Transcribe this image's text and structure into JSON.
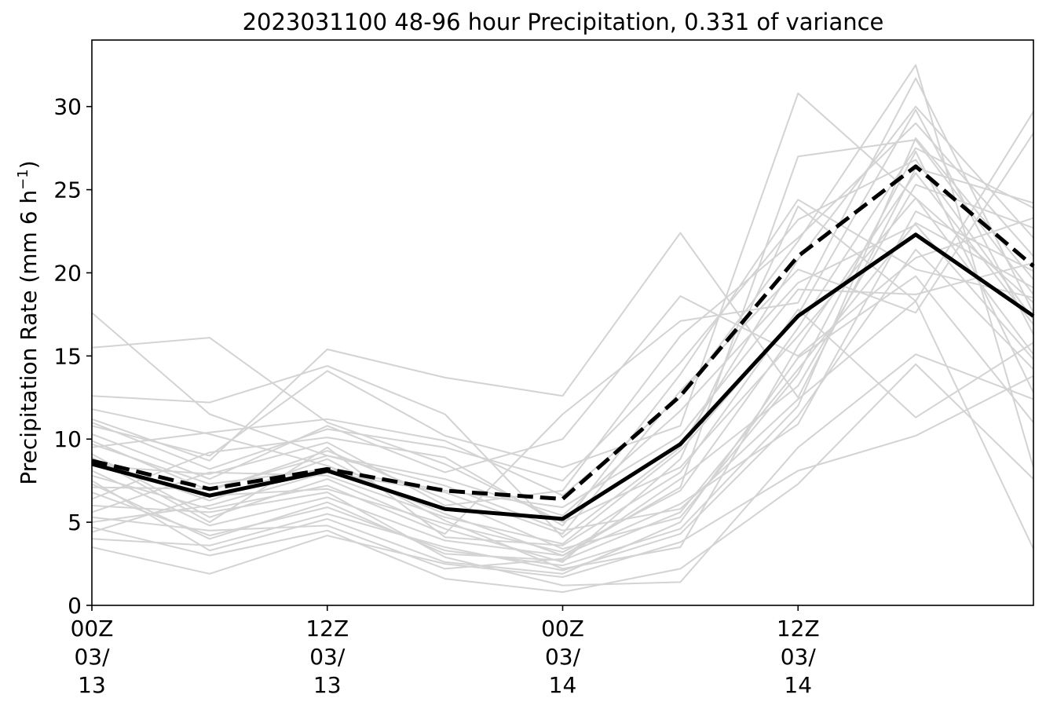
{
  "chart_data": {
    "type": "line",
    "title": "2023031100 48-96 hour Precipitation, 0.331 of variance",
    "ylabel_main": "Precipitation Rate (mm 6 h",
    "ylabel_sup": "−1",
    "ylabel_end": ")",
    "xlabel": "",
    "x": [
      0,
      6,
      12,
      18,
      24,
      30,
      36,
      42,
      48
    ],
    "xlim": [
      0,
      48
    ],
    "ylim": [
      0,
      34
    ],
    "yticks": [
      0,
      5,
      10,
      15,
      20,
      25,
      30
    ],
    "xticks": [
      {
        "x": 0,
        "lines": [
          "00Z",
          "03/",
          "13"
        ]
      },
      {
        "x": 12,
        "lines": [
          "12Z",
          "03/",
          "13"
        ]
      },
      {
        "x": 24,
        "lines": [
          "00Z",
          "03/",
          "14"
        ]
      },
      {
        "x": 36,
        "lines": [
          "12Z",
          "03/",
          "14"
        ]
      }
    ],
    "grid": false,
    "colors": {
      "ensemble": "#d3d3d3",
      "solid": "#000000",
      "dashed": "#000000"
    },
    "ensemble": [
      [
        17.6,
        11.5,
        9.0,
        7.2,
        4.5,
        5.8,
        12.4,
        18.3,
        3.4
      ],
      [
        15.5,
        16.1,
        11.0,
        8.5,
        5.0,
        8.3,
        16.2,
        24.5,
        18.2
      ],
      [
        12.6,
        12.2,
        14.4,
        11.5,
        4.1,
        9.5,
        20.8,
        30.0,
        22.1
      ],
      [
        11.8,
        10.3,
        8.4,
        5.5,
        3.0,
        7.1,
        27.0,
        28.0,
        18.7
      ],
      [
        11.2,
        8.7,
        15.4,
        13.7,
        12.6,
        22.4,
        12.5,
        26.3,
        24.2
      ],
      [
        10.8,
        9.0,
        14.1,
        10.2,
        8.3,
        10.8,
        30.8,
        24.5,
        15.1
      ],
      [
        10.3,
        7.6,
        10.8,
        8.0,
        10.0,
        18.6,
        15.0,
        20.9,
        23.3
      ],
      [
        9.9,
        6.9,
        9.3,
        6.4,
        3.4,
        5.3,
        13.9,
        27.3,
        12.8
      ],
      [
        9.5,
        10.4,
        11.2,
        9.9,
        6.6,
        12.5,
        21.9,
        32.5,
        8.3
      ],
      [
        9.1,
        5.3,
        7.6,
        4.6,
        2.6,
        8.8,
        24.0,
        18.3,
        29.7
      ],
      [
        8.8,
        6.3,
        8.8,
        5.1,
        2.2,
        3.5,
        15.6,
        26.0,
        16.9
      ],
      [
        8.4,
        7.9,
        9.8,
        6.0,
        6.9,
        16.2,
        22.1,
        29.0,
        21.0
      ],
      [
        8.1,
        4.8,
        6.5,
        3.9,
        3.0,
        6.1,
        10.9,
        23.7,
        20.1
      ],
      [
        7.8,
        5.8,
        7.2,
        4.3,
        11.5,
        17.1,
        18.2,
        31.7,
        17.6
      ],
      [
        7.5,
        3.3,
        5.2,
        2.6,
        1.9,
        5.0,
        14.9,
        19.8,
        11.0
      ],
      [
        7.1,
        7.0,
        9.0,
        7.6,
        5.4,
        11.7,
        19.4,
        22.9,
        14.8
      ],
      [
        6.8,
        4.2,
        5.9,
        3.3,
        2.4,
        4.6,
        12.0,
        28.1,
        19.6
      ],
      [
        6.4,
        9.2,
        10.1,
        8.9,
        4.8,
        13.9,
        24.4,
        20.2,
        18.5
      ],
      [
        6.0,
        5.6,
        6.8,
        2.9,
        1.2,
        1.4,
        9.5,
        15.1,
        12.4
      ],
      [
        5.6,
        8.0,
        7.8,
        5.3,
        3.7,
        9.3,
        17.5,
        29.8,
        16.3
      ],
      [
        5.3,
        4.5,
        4.8,
        2.2,
        2.8,
        7.6,
        13.2,
        25.3,
        22.7
      ],
      [
        5.0,
        6.0,
        8.0,
        6.8,
        4.3,
        12.9,
        20.2,
        17.6,
        28.4
      ],
      [
        4.7,
        3.0,
        4.5,
        1.6,
        0.8,
        2.2,
        7.3,
        14.5,
        7.6
      ],
      [
        4.4,
        6.6,
        7.0,
        4.9,
        3.2,
        6.9,
        16.7,
        27.5,
        23.9
      ],
      [
        4.0,
        3.6,
        5.5,
        3.5,
        2.1,
        4.3,
        11.4,
        21.4,
        14.2
      ],
      [
        3.5,
        1.9,
        4.2,
        2.5,
        1.7,
        3.8,
        8.1,
        10.2,
        13.8
      ],
      [
        11.0,
        8.2,
        10.6,
        9.5,
        7.5,
        14.6,
        23.2,
        26.8,
        17.2
      ],
      [
        9.7,
        7.3,
        8.2,
        6.9,
        5.9,
        10.2,
        19.0,
        18.7,
        20.6
      ],
      [
        8.9,
        5.0,
        9.5,
        4.1,
        3.6,
        8.0,
        17.8,
        11.3,
        15.8
      ],
      [
        7.3,
        4.0,
        6.2,
        3.1,
        2.7,
        5.6,
        14.2,
        23.0,
        19.1
      ]
    ],
    "series": [
      {
        "style": "solid",
        "values": [
          8.5,
          6.6,
          8.1,
          5.8,
          5.2,
          9.7,
          17.4,
          22.3,
          17.4
        ]
      },
      {
        "style": "dashed",
        "values": [
          8.7,
          7.0,
          8.2,
          6.9,
          6.4,
          12.6,
          21.0,
          26.4,
          20.4
        ]
      }
    ]
  }
}
